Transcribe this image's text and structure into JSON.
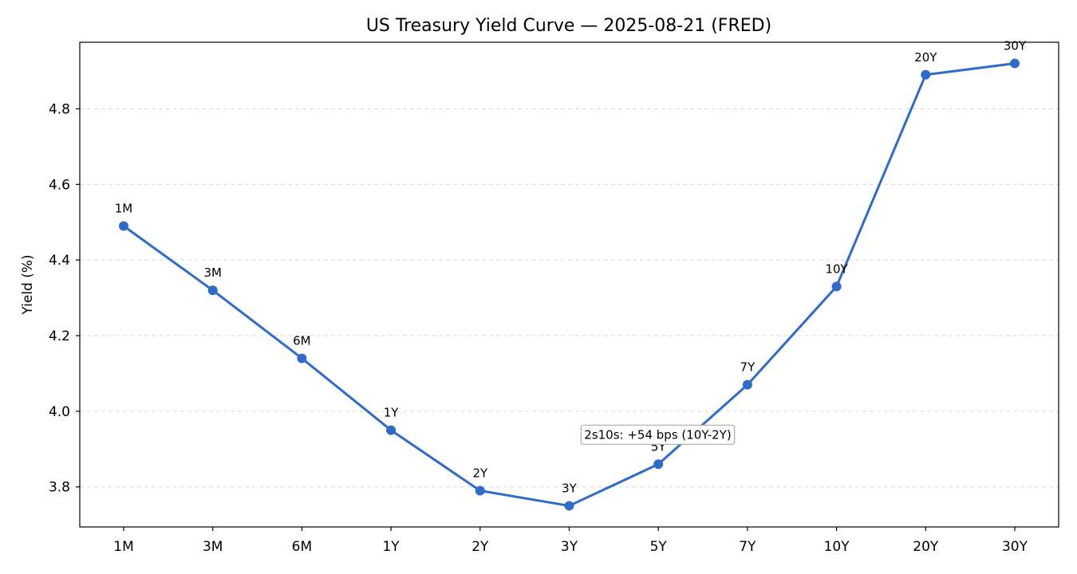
{
  "chart_data": {
    "type": "line",
    "title": "US Treasury Yield Curve — 2025-08-21 (FRED)",
    "xlabel": "",
    "ylabel": "Yield (%)",
    "categories": [
      "1M",
      "3M",
      "6M",
      "1Y",
      "2Y",
      "3Y",
      "5Y",
      "7Y",
      "10Y",
      "20Y",
      "30Y"
    ],
    "series": [
      {
        "name": "Yield",
        "values": [
          4.49,
          4.32,
          4.14,
          3.95,
          3.79,
          3.75,
          3.86,
          4.07,
          4.33,
          4.89,
          4.92
        ],
        "color": "#2f6bc9"
      }
    ],
    "point_labels": [
      "1M",
      "3M",
      "6M",
      "1Y",
      "2Y",
      "3Y",
      "5Y",
      "7Y",
      "10Y",
      "20Y",
      "30Y"
    ],
    "yticks": [
      "3.8",
      "4.0",
      "4.2",
      "4.4",
      "4.6",
      "4.8"
    ],
    "ylim": [
      3.694,
      4.976
    ],
    "grid": "y-dashed",
    "annotation": {
      "text": "2s10s: +54 bps (10Y-2Y)",
      "at_category": "3Y",
      "at_value": 3.94
    }
  }
}
